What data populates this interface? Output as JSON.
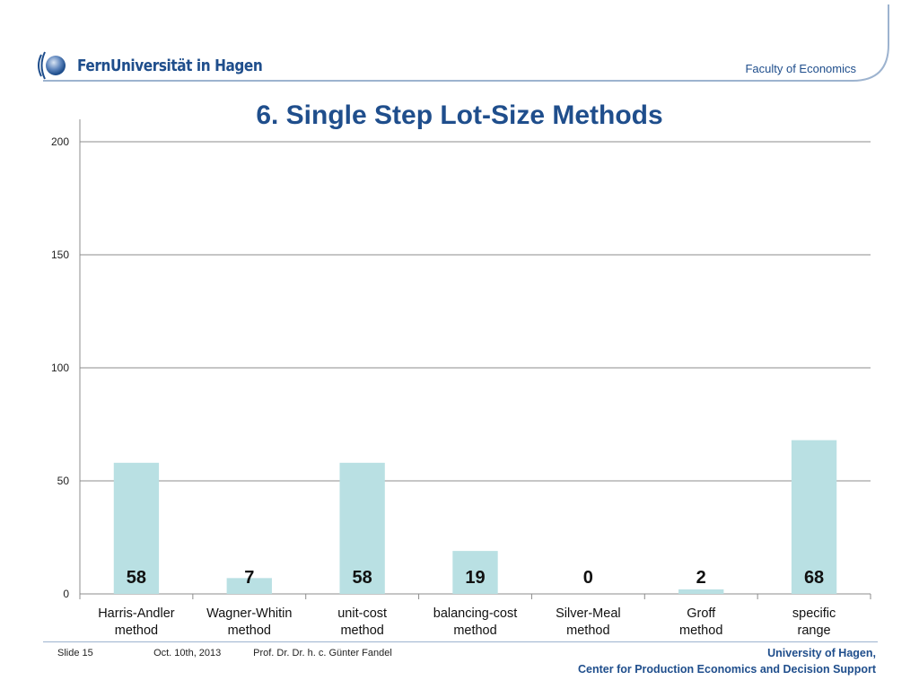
{
  "header": {
    "logo_text": "FernUniversität in Hagen",
    "faculty": "Faculty of Economics"
  },
  "title": "6. Single Step Lot-Size Methods",
  "chart_data": {
    "type": "bar",
    "categories": [
      [
        "Harris-Andler",
        "method"
      ],
      [
        "Wagner-Whitin",
        "method"
      ],
      [
        "unit-cost",
        "method"
      ],
      [
        "balancing-cost",
        "method"
      ],
      [
        "Silver-Meal",
        "method"
      ],
      [
        "Groff",
        "method"
      ],
      [
        "specific",
        "range"
      ]
    ],
    "values": [
      58,
      7,
      58,
      19,
      0,
      2,
      68
    ],
    "data_labels": [
      "58",
      "7",
      "58",
      "19",
      "0",
      "2",
      "68"
    ],
    "ylim": [
      0,
      200
    ],
    "yticks": [
      0,
      50,
      100,
      150,
      200
    ],
    "grid": true,
    "bar_color": "#b9e0e3"
  },
  "footer": {
    "slide": "Slide 15",
    "date": "Oct. 10th, 2013",
    "author": "Prof. Dr. Dr. h. c. Günter Fandel",
    "university": "University of Hagen,",
    "center": "Center for Production Economics and Decision Support"
  },
  "colors": {
    "brand": "#1f4e8c",
    "grid": "#8c8c8c"
  }
}
